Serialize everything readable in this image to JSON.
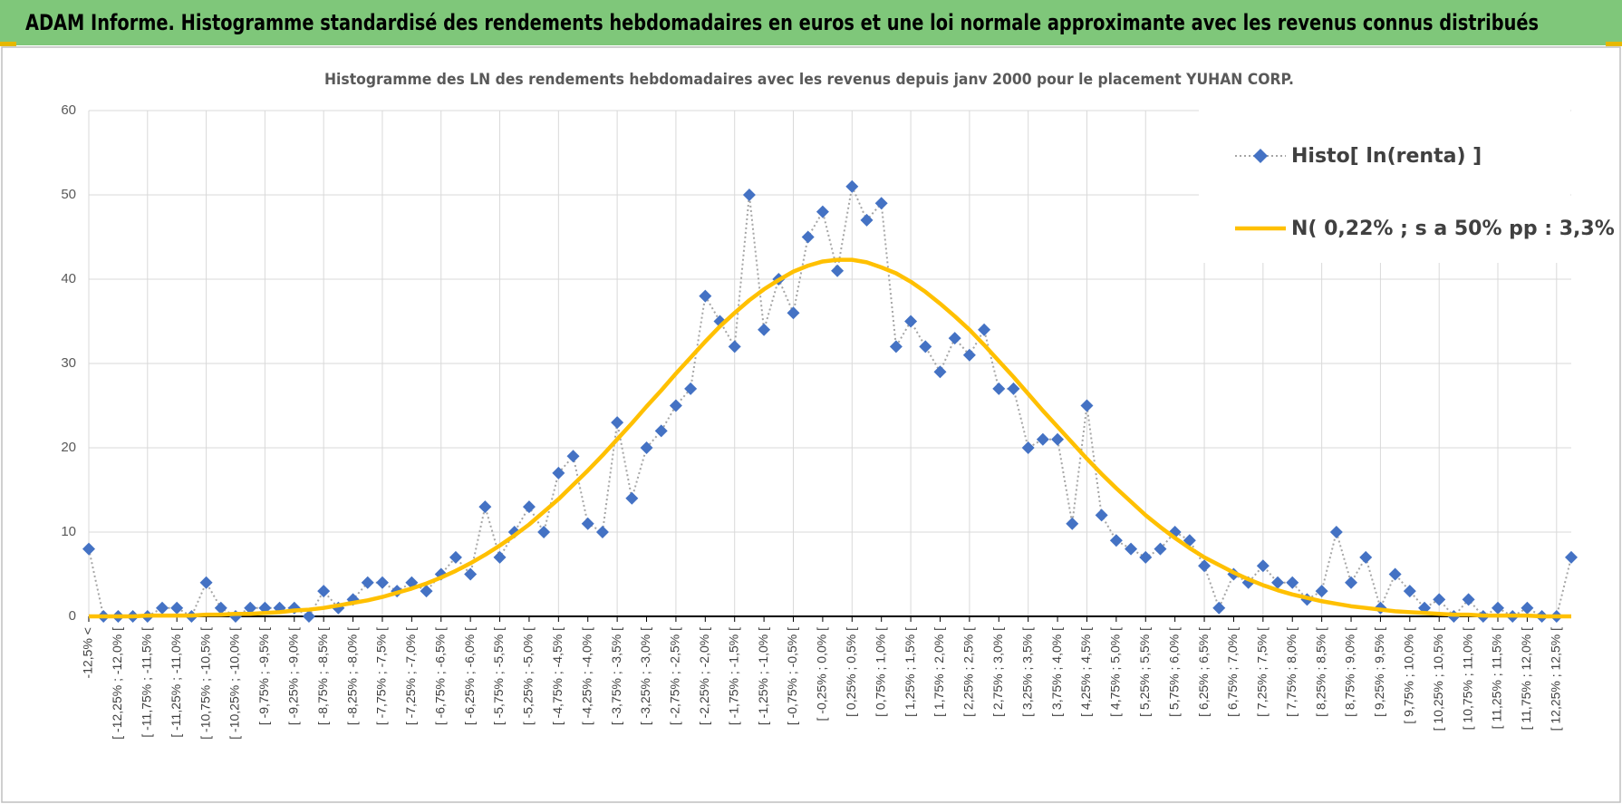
{
  "header": {
    "title": "ADAM Informe. Histogramme standardisé des rendements hebdomadaires en euros et une loi normale approximante avec les revenus connus distribués"
  },
  "chart_data": {
    "type": "line",
    "title": "Histogramme  des LN des rendements hebdomadaires avec les revenus depuis janv 2000 pour le placement YUHAN CORP.",
    "categories": [
      "-12,5% <",
      null,
      "[ -12,25% ; -12,0% [",
      null,
      "[ -11,75% ; -11,5% [",
      null,
      "[ -11,25% ; -11,0% [",
      null,
      "[ -10,75% ; -10,5% [",
      null,
      "[ -10,25% ; -10,0% [",
      null,
      "[ -9,75% ; -9,5% [",
      null,
      "[ -9,25% ; -9,0% [",
      null,
      "[ -8,75% ; -8,5% [",
      null,
      "[ -8,25% ; -8,0% [",
      null,
      "[ -7,75% ; -7,5% [",
      null,
      "[ -7,25% ; -7,0% [",
      null,
      "[ -6,75% ; -6,5% [",
      null,
      "[ -6,25% ; -6,0% [",
      null,
      "[ -5,75% ; -5,5% [",
      null,
      "[ -5,25% ; -5,0% [",
      null,
      "[ -4,75% ; -4,5% [",
      null,
      "[ -4,25% ; -4,0% [",
      null,
      "[ -3,75% ; -3,5% [",
      null,
      "[ -3,25% ; -3,0% [",
      null,
      "[ -2,75% ; -2,5% [",
      null,
      "[ -2,25% ; -2,0% [",
      null,
      "[ -1,75% ; -1,5% [",
      null,
      "[ -1,25% ; -1,0% [",
      null,
      "[ -0,75% ; -0,5% [",
      null,
      "[ -0,25% ; 0,0% [",
      null,
      "[ 0,25% ; 0,5% [",
      null,
      "[ 0,75% ; 1,0% [",
      null,
      "[ 1,25% ; 1,5% [",
      null,
      "[ 1,75% ; 2,0% [",
      null,
      "[ 2,25% ; 2,5% [",
      null,
      "[ 2,75% ; 3,0% [",
      null,
      "[ 3,25% ; 3,5% [",
      null,
      "[ 3,75% ; 4,0% [",
      null,
      "[ 4,25% ; 4,5% [",
      null,
      "[ 4,75% ; 5,0% [",
      null,
      "[ 5,25% ; 5,5% [",
      null,
      "[ 5,75% ; 6,0% [",
      null,
      "[ 6,25% ; 6,5% [",
      null,
      "[ 6,75% ; 7,0% [",
      null,
      "[ 7,25% ; 7,5% [",
      null,
      "[ 7,75% ; 8,0% [",
      null,
      "[ 8,25% ; 8,5% [",
      null,
      "[ 8,75% ; 9,0% [",
      null,
      "[ 9,25% ; 9,5% [",
      null,
      "[ 9,75% ; 10,0% [",
      null,
      "[ 10,25% ; 10,5% [",
      null,
      "[ 10,75% ; 11,0% [",
      null,
      "[ 11,25% ; 11,5% [",
      null,
      "[ 11,75% ; 12,0% [",
      null,
      "[ 12,25% ; 12,5% [",
      null
    ],
    "series": [
      {
        "name": "Histo[ ln(renta) ]",
        "color": "#4472c4",
        "line_color": "#a5a5a5",
        "marker": "diamond",
        "dashed": true,
        "values": [
          8,
          0,
          0,
          0,
          0,
          1,
          1,
          0,
          4,
          1,
          0,
          1,
          1,
          1,
          1,
          0,
          3,
          1,
          2,
          4,
          4,
          3,
          4,
          3,
          5,
          7,
          5,
          13,
          7,
          10,
          13,
          10,
          17,
          19,
          11,
          10,
          23,
          14,
          20,
          22,
          25,
          27,
          38,
          35,
          32,
          50,
          34,
          40,
          36,
          45,
          48,
          41,
          51,
          47,
          49,
          32,
          35,
          32,
          29,
          33,
          31,
          34,
          27,
          27,
          20,
          21,
          21,
          11,
          25,
          12,
          9,
          8,
          7,
          8,
          10,
          9,
          6,
          1,
          5,
          4,
          6,
          4,
          4,
          2,
          3,
          10,
          4,
          7,
          1,
          5,
          3,
          1,
          2,
          0,
          2,
          0,
          1,
          0,
          1,
          0,
          0,
          7
        ]
      },
      {
        "name": "N( 0,22% ; s a 50% pp : 3,3% )",
        "color": "#ffc000",
        "marker": null,
        "dashed": false,
        "values": [
          0.0,
          0.0,
          0.0,
          0.0,
          0.1,
          0.1,
          0.1,
          0.1,
          0.2,
          0.2,
          0.3,
          0.3,
          0.4,
          0.5,
          0.7,
          0.8,
          1.0,
          1.3,
          1.6,
          1.9,
          2.3,
          2.8,
          3.3,
          3.9,
          4.6,
          5.4,
          6.3,
          7.3,
          8.4,
          9.6,
          10.9,
          12.4,
          13.9,
          15.6,
          17.3,
          19.1,
          21.0,
          22.9,
          24.9,
          26.8,
          28.8,
          30.7,
          32.6,
          34.4,
          36.0,
          37.5,
          38.8,
          39.9,
          40.9,
          41.6,
          42.1,
          42.3,
          42.3,
          42.0,
          41.4,
          40.7,
          39.7,
          38.5,
          37.1,
          35.6,
          34.0,
          32.2,
          30.3,
          28.4,
          26.4,
          24.4,
          22.5,
          20.6,
          18.7,
          16.9,
          15.2,
          13.6,
          12.0,
          10.6,
          9.3,
          8.1,
          7.0,
          6.1,
          5.2,
          4.4,
          3.7,
          3.1,
          2.6,
          2.2,
          1.8,
          1.5,
          1.2,
          1.0,
          0.8,
          0.6,
          0.5,
          0.4,
          0.3,
          0.2,
          0.2,
          0.1,
          0.1,
          0.1,
          0.1,
          0.0,
          0.0,
          0.0
        ]
      }
    ],
    "ylim": [
      0,
      60
    ],
    "yticks": [
      0,
      10,
      20,
      30,
      40,
      50,
      60
    ],
    "grid": true,
    "legend": "top-right"
  }
}
